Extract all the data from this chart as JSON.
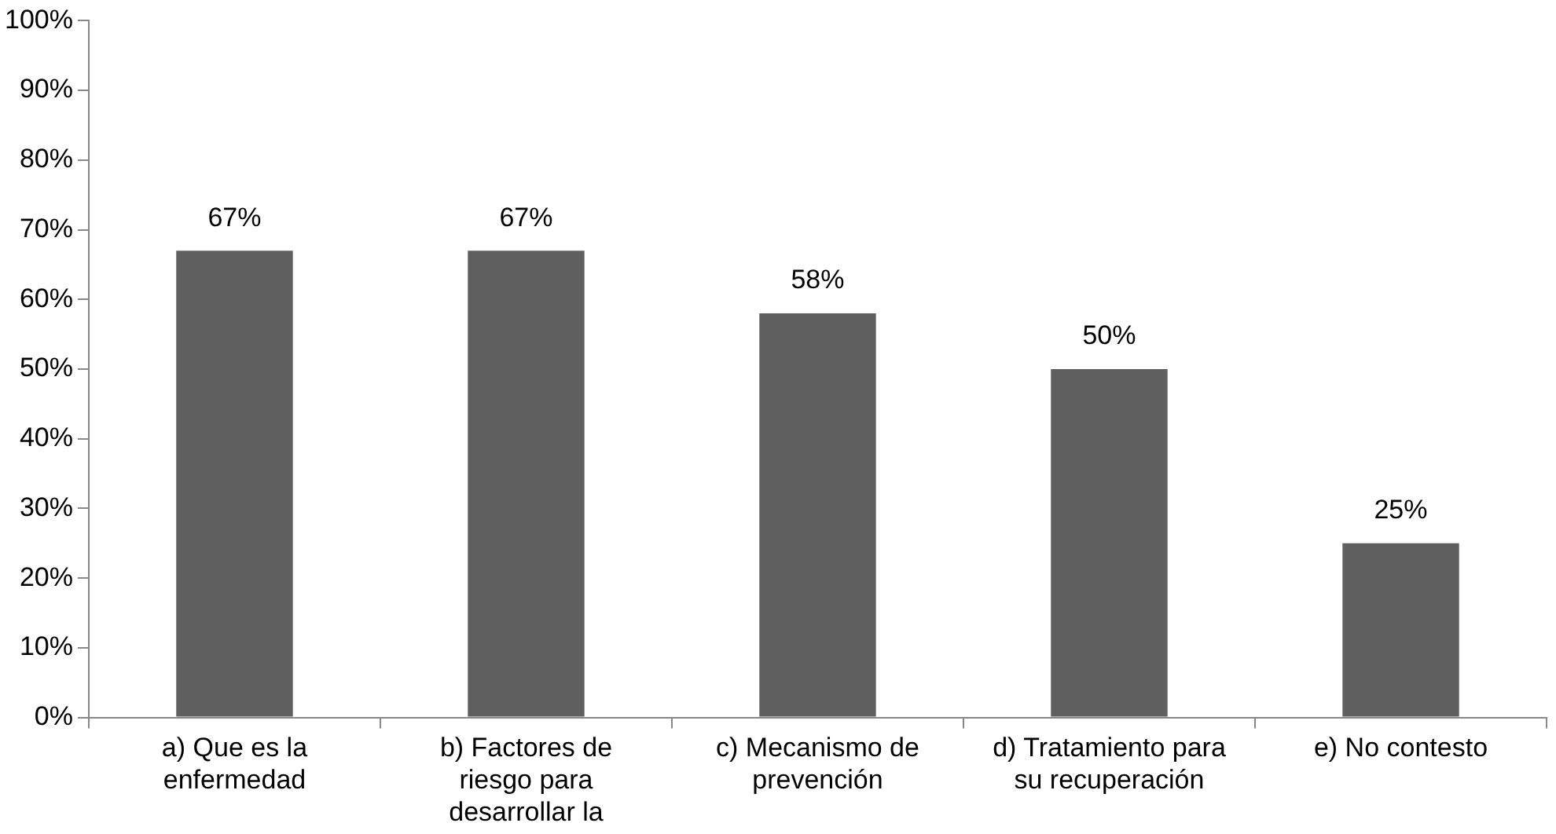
{
  "chart_data": {
    "type": "bar",
    "categories": [
      "a) Que es la enfermedad",
      "b) Factores de riesgo para desarrollar la",
      "c) Mecanismo de prevención",
      "d) Tratamiento para su recuperación",
      "e) No contesto"
    ],
    "values": [
      67,
      67,
      58,
      50,
      25
    ],
    "value_labels": [
      "67%",
      "67%",
      "58%",
      "50%",
      "25%"
    ],
    "color": "#5f5f5f",
    "ylim": [
      0,
      100
    ],
    "yticks": [
      {
        "value": 0,
        "label": "0%"
      },
      {
        "value": 10,
        "label": "10%"
      },
      {
        "value": 20,
        "label": "20%"
      },
      {
        "value": 30,
        "label": "30%"
      },
      {
        "value": 40,
        "label": "40%"
      },
      {
        "value": 50,
        "label": "50%"
      },
      {
        "value": 60,
        "label": "60%"
      },
      {
        "value": 70,
        "label": "70%"
      },
      {
        "value": 80,
        "label": "80%"
      },
      {
        "value": 90,
        "label": "90%"
      },
      {
        "value": 100,
        "label": "100%"
      }
    ],
    "grid": false,
    "legend": false
  }
}
